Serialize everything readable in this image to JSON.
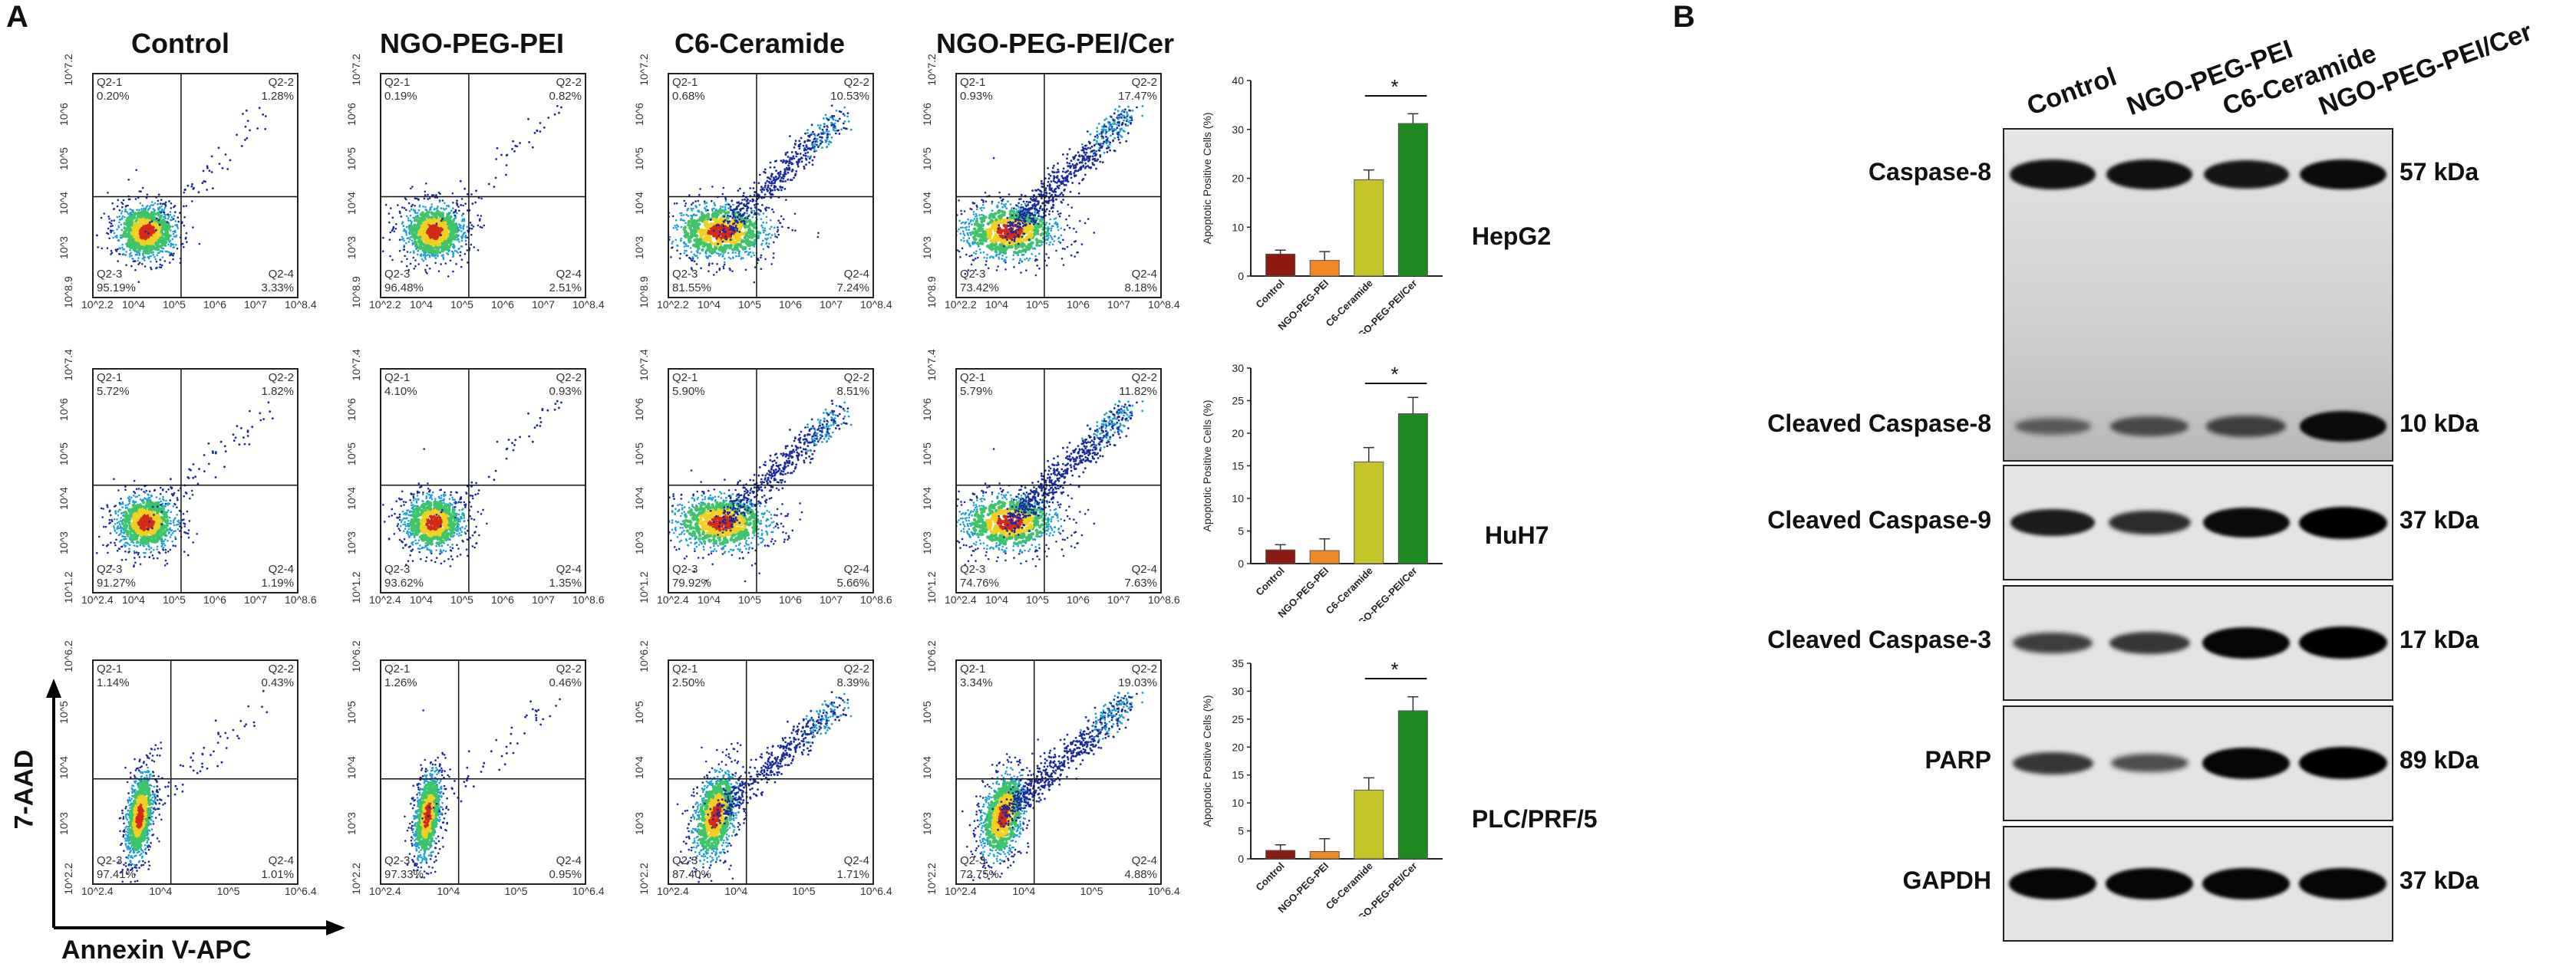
{
  "panel_a": {
    "letter": "A",
    "column_headers": [
      "Control",
      "NGO-PEG-PEI",
      "C6-Ceramide",
      "NGO-PEG-PEI/Cer"
    ],
    "y_axis_label": "7-AAD",
    "x_axis_label": "Annexin V-APC",
    "rows": [
      {
        "cell_line": "HepG2",
        "x_ticks": [
          "10^2.2",
          "10^4",
          "10^5",
          "10^6",
          "10^7",
          "10^8.4"
        ],
        "y_ticks": [
          "10^8.9",
          "10^3",
          "10^4",
          "10^5",
          "10^6",
          "10^7.2"
        ],
        "plots": [
          {
            "q1": "Q2-1",
            "q1v": "0.20%",
            "q2": "Q2-2",
            "q2v": "1.28%",
            "q3": "Q2-3",
            "q3v": "95.19%",
            "q4": "Q2-4",
            "q4v": "3.33%"
          },
          {
            "q1": "Q2-1",
            "q1v": "0.19%",
            "q2": "Q2-2",
            "q2v": "0.82%",
            "q3": "Q2-3",
            "q3v": "96.48%",
            "q4": "Q2-4",
            "q4v": "2.51%"
          },
          {
            "q1": "Q2-1",
            "q1v": "0.68%",
            "q2": "Q2-2",
            "q2v": "10.53%",
            "q3": "Q2-3",
            "q3v": "81.55%",
            "q4": "Q2-4",
            "q4v": "7.24%"
          },
          {
            "q1": "Q2-1",
            "q1v": "0.93%",
            "q2": "Q2-2",
            "q2v": "17.47%",
            "q3": "Q2-3",
            "q3v": "73.42%",
            "q4": "Q2-4",
            "q4v": "8.18%"
          }
        ]
      },
      {
        "cell_line": "HuH7",
        "x_ticks": [
          "10^2.4",
          "10^4",
          "10^5",
          "10^6",
          "10^7",
          "10^8.6"
        ],
        "y_ticks": [
          "10^1.2",
          "10^3",
          "10^4",
          "10^5",
          "10^6",
          "10^7.4"
        ],
        "plots": [
          {
            "q1": "Q2-1",
            "q1v": "5.72%",
            "q2": "Q2-2",
            "q2v": "1.82%",
            "q3": "Q2-3",
            "q3v": "91.27%",
            "q4": "Q2-4",
            "q4v": "1.19%"
          },
          {
            "q1": "Q2-1",
            "q1v": "4.10%",
            "q2": "Q2-2",
            "q2v": "0.93%",
            "q3": "Q2-3",
            "q3v": "93.62%",
            "q4": "Q2-4",
            "q4v": "1.35%"
          },
          {
            "q1": "Q2-1",
            "q1v": "5.90%",
            "q2": "Q2-2",
            "q2v": "8.51%",
            "q3": "Q2-3",
            "q3v": "79.92%",
            "q4": "Q2-4",
            "q4v": "5.66%"
          },
          {
            "q1": "Q2-1",
            "q1v": "5.79%",
            "q2": "Q2-2",
            "q2v": "11.82%",
            "q3": "Q2-3",
            "q3v": "74.76%",
            "q4": "Q2-4",
            "q4v": "7.63%"
          }
        ]
      },
      {
        "cell_line": "PLC/PRF/5",
        "x_ticks": [
          "10^2.4",
          "10^4",
          "10^5",
          "10^6.4"
        ],
        "y_ticks": [
          "10^2.2",
          "10^3",
          "10^4",
          "10^5",
          "10^6.2"
        ],
        "plots": [
          {
            "q1": "Q2-1",
            "q1v": "1.14%",
            "q2": "Q2-2",
            "q2v": "0.43%",
            "q3": "Q2-3",
            "q3v": "97.41%",
            "q4": "Q2-4",
            "q4v": "1.01%"
          },
          {
            "q1": "Q2-1",
            "q1v": "1.26%",
            "q2": "Q2-2",
            "q2v": "0.46%",
            "q3": "Q2-3",
            "q3v": "97.33%",
            "q4": "Q2-4",
            "q4v": "0.95%"
          },
          {
            "q1": "Q2-1",
            "q1v": "2.50%",
            "q2": "Q2-2",
            "q2v": "8.39%",
            "q3": "Q2-3",
            "q3v": "87.40%",
            "q4": "Q2-4",
            "q4v": "1.71%"
          },
          {
            "q1": "Q2-1",
            "q1v": "3.34%",
            "q2": "Q2-2",
            "q2v": "19.03%",
            "q3": "Q2-3",
            "q3v": "72.75%",
            "q4": "Q2-4",
            "q4v": "4.88%"
          }
        ]
      }
    ]
  },
  "chart_data": [
    {
      "type": "bar",
      "title": "HepG2",
      "categories": [
        "Control",
        "NGO-PEG-PEI",
        "C6-Ceramide",
        "NGO-PEG-PEI/Cer"
      ],
      "values": [
        4.5,
        3.2,
        19.7,
        31.2
      ],
      "errors": [
        0.8,
        1.8,
        2.0,
        2.0
      ],
      "ylabel": "Apoptotic Positive Cells (%)",
      "ylim": [
        0,
        40
      ],
      "yticks": [
        "0",
        "10",
        "20",
        "30",
        "40"
      ],
      "significance": "*",
      "colors": [
        "#8b1a10",
        "#f08a24",
        "#c6c62a",
        "#1f8a1f"
      ]
    },
    {
      "type": "bar",
      "title": "HuH7",
      "categories": [
        "Control",
        "NGO-PEG-PEI",
        "C6-Ceramide",
        "NGO-PEG-PEI/Cer"
      ],
      "values": [
        2.1,
        2.0,
        15.6,
        23.0
      ],
      "errors": [
        0.8,
        1.8,
        2.2,
        2.5
      ],
      "ylabel": "Apoptotic Positive Cells (%)",
      "ylim": [
        0,
        30
      ],
      "yticks": [
        "0",
        "5",
        "10",
        "15",
        "20",
        "25",
        "30"
      ],
      "significance": "*",
      "colors": [
        "#8b1a10",
        "#f08a24",
        "#c6c62a",
        "#1f8a1f"
      ]
    },
    {
      "type": "bar",
      "title": "PLC/PRF/5",
      "categories": [
        "Control",
        "NGO-PEG-PEI",
        "C6-Ceramide",
        "NGO-PEG-PEI/Cer"
      ],
      "values": [
        1.5,
        1.3,
        12.3,
        26.5
      ],
      "errors": [
        1.0,
        2.3,
        2.2,
        2.5
      ],
      "ylabel": "Apoptotic Positive Cells (%)",
      "ylim": [
        0,
        35
      ],
      "yticks": [
        "0",
        "5",
        "10",
        "15",
        "20",
        "25",
        "30",
        "35"
      ],
      "significance": "*",
      "colors": [
        "#8b1a10",
        "#f08a24",
        "#c6c62a",
        "#1f8a1f"
      ]
    }
  ],
  "panel_b": {
    "letter": "B",
    "lanes": [
      "Control",
      "NGO-PEG-PEI",
      "C6-Ceramide",
      "NGO-PEG-PEI/Cer"
    ],
    "blots": [
      {
        "label": "Caspase-8",
        "kda": "57 kDa",
        "intensities": [
          0.85,
          0.85,
          0.8,
          0.9
        ]
      },
      {
        "label": "Cleaved Caspase-8",
        "kda": "10 kDa",
        "intensities": [
          0.2,
          0.35,
          0.45,
          0.9
        ]
      },
      {
        "label": "Cleaved Caspase-9",
        "kda": "37 kDa",
        "intensities": [
          0.75,
          0.6,
          0.9,
          1.0
        ]
      },
      {
        "label": "Cleaved Caspase-3",
        "kda": "17 kDa",
        "intensities": [
          0.45,
          0.5,
          0.95,
          1.0
        ]
      },
      {
        "label": "PARP",
        "kda": "89 kDa",
        "intensities": [
          0.5,
          0.3,
          0.95,
          1.0
        ]
      },
      {
        "label": "GAPDH",
        "kda": "37 kDa",
        "intensities": [
          0.95,
          0.95,
          0.95,
          0.95
        ]
      }
    ]
  }
}
